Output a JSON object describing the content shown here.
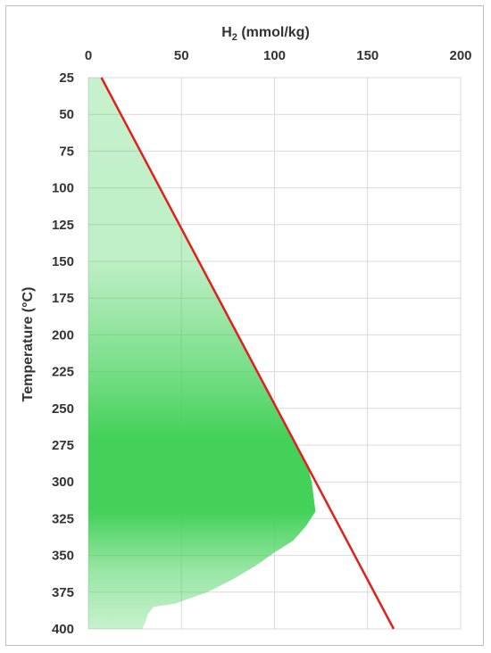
{
  "chart_data": {
    "type": "area",
    "orientation": "temperature-down",
    "x_axis": {
      "label": "H₂ (mmol/kg)",
      "label_main": "H",
      "label_sub": "2",
      "label_rest": " (mmol/kg)",
      "position": "top",
      "range": [
        0,
        200
      ],
      "ticks": [
        0,
        50,
        100,
        150,
        200
      ]
    },
    "y_axis": {
      "label": "Temperature (°C)",
      "range": [
        25,
        400
      ],
      "reversed": true,
      "ticks": [
        25,
        50,
        75,
        100,
        125,
        150,
        175,
        200,
        225,
        250,
        275,
        300,
        325,
        350,
        375,
        400
      ]
    },
    "grid": true,
    "series": [
      {
        "kind": "line",
        "color": "#e0201b",
        "points": [
          [
            7,
            25
          ],
          [
            164,
            400
          ]
        ]
      },
      {
        "kind": "area",
        "color": "#44d15a",
        "fill_light": "#c9f2cc",
        "boundary": [
          [
            0,
            25
          ],
          [
            7,
            25
          ],
          [
            50,
            127
          ],
          [
            100,
            246
          ],
          [
            113,
            278
          ],
          [
            118,
            290
          ],
          [
            120,
            300
          ],
          [
            121,
            310
          ],
          [
            122,
            320
          ],
          [
            117,
            330
          ],
          [
            110,
            340
          ],
          [
            100,
            348
          ],
          [
            90,
            357
          ],
          [
            78,
            366
          ],
          [
            64,
            375
          ],
          [
            46,
            383
          ],
          [
            35,
            385
          ],
          [
            32,
            390
          ],
          [
            31,
            394
          ],
          [
            29,
            400
          ],
          [
            0,
            400
          ]
        ],
        "gradient_stops": [
          {
            "t": 25,
            "opacity": 0.3
          },
          {
            "t": 150,
            "opacity": 0.35
          },
          {
            "t": 220,
            "opacity": 0.7
          },
          {
            "t": 270,
            "opacity": 1.0
          },
          {
            "t": 320,
            "opacity": 1.0
          },
          {
            "t": 360,
            "opacity": 0.55
          },
          {
            "t": 400,
            "opacity": 0.3
          }
        ]
      }
    ]
  },
  "colors": {
    "grid": "#d9d9d9",
    "text": "#333333"
  }
}
